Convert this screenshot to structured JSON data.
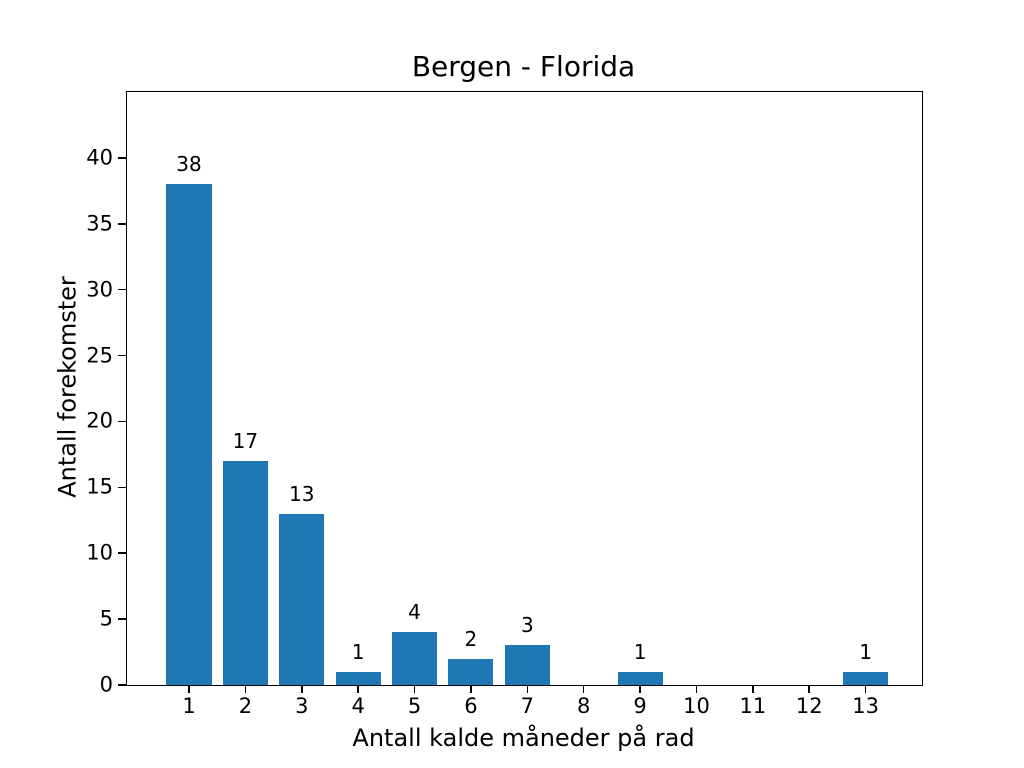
{
  "chart_data": {
    "type": "bar",
    "title": "Bergen - Florida",
    "xlabel": "Antall kalde måneder på rad",
    "ylabel": "Antall forekomster",
    "categories": [
      1,
      2,
      3,
      4,
      5,
      6,
      7,
      8,
      9,
      10,
      11,
      12,
      13
    ],
    "values": [
      38,
      17,
      13,
      1,
      4,
      2,
      3,
      0,
      1,
      0,
      0,
      0,
      1
    ],
    "bar_labels": [
      "38",
      "17",
      "13",
      "1",
      "4",
      "2",
      "3",
      "",
      "1",
      "",
      "",
      "",
      "1"
    ],
    "yticks": [
      0,
      5,
      10,
      15,
      20,
      25,
      30,
      35,
      40
    ],
    "ylim": [
      0,
      45
    ],
    "xlim": [
      -0.1,
      14.0
    ],
    "bar_width": 0.8,
    "bar_color": "#1f77b4",
    "text_color": "#000000",
    "background_color": "#ffffff",
    "grid": false,
    "legend": null
  }
}
